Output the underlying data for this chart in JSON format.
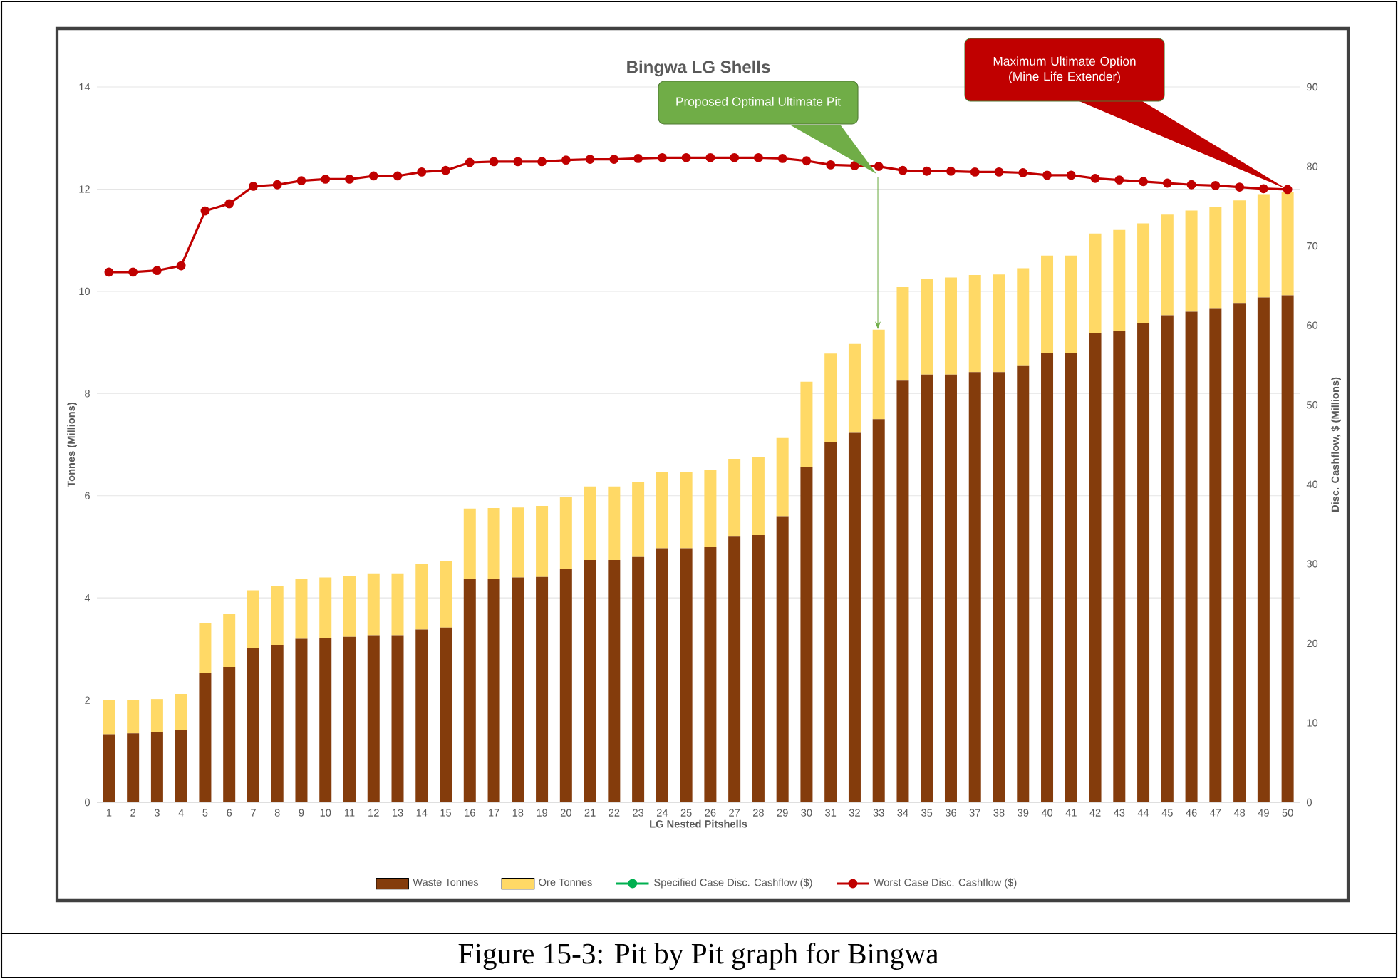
{
  "chart_data": {
    "type": "bar",
    "stacked": true,
    "title": "Bingwa LG Shells",
    "xlabel": "LG Nested Pitshells",
    "ylabel": "Tonnes (Millions)",
    "y2label": "Disc. Cashflow, $ (Millions)",
    "categories": [
      "1",
      "2",
      "3",
      "4",
      "5",
      "6",
      "7",
      "8",
      "9",
      "10",
      "11",
      "12",
      "13",
      "14",
      "15",
      "16",
      "17",
      "18",
      "19",
      "20",
      "21",
      "22",
      "23",
      "24",
      "25",
      "26",
      "27",
      "28",
      "29",
      "30",
      "31",
      "32",
      "33",
      "34",
      "35",
      "36",
      "37",
      "38",
      "39",
      "40",
      "41",
      "42",
      "43",
      "44",
      "45",
      "46",
      "47",
      "48",
      "49",
      "50"
    ],
    "series": [
      {
        "name": "Waste Tonnes",
        "color": "#843c0c",
        "values": [
          1.33,
          1.35,
          1.37,
          1.42,
          2.53,
          2.65,
          3.02,
          3.08,
          3.2,
          3.22,
          3.24,
          3.27,
          3.27,
          3.38,
          3.42,
          4.38,
          4.38,
          4.4,
          4.41,
          4.57,
          4.74,
          4.74,
          4.8,
          4.97,
          4.97,
          5.0,
          5.21,
          5.23,
          5.6,
          6.56,
          7.05,
          7.23,
          7.5,
          8.25,
          8.37,
          8.37,
          8.42,
          8.42,
          8.55,
          8.8,
          8.8,
          9.18,
          9.23,
          9.38,
          9.53,
          9.6,
          9.67,
          9.77,
          9.88,
          9.92
        ]
      },
      {
        "name": "Ore Tonnes",
        "color": "#ffd966",
        "values": [
          0.67,
          0.65,
          0.65,
          0.7,
          0.97,
          1.03,
          1.13,
          1.15,
          1.18,
          1.18,
          1.18,
          1.21,
          1.21,
          1.29,
          1.3,
          1.37,
          1.38,
          1.37,
          1.39,
          1.41,
          1.44,
          1.44,
          1.46,
          1.49,
          1.5,
          1.5,
          1.51,
          1.52,
          1.53,
          1.67,
          1.73,
          1.74,
          1.75,
          1.83,
          1.88,
          1.9,
          1.9,
          1.91,
          1.9,
          1.9,
          1.9,
          1.95,
          1.97,
          1.95,
          1.97,
          1.98,
          1.98,
          2.01,
          2.02,
          2.03
        ]
      },
      {
        "name": "Specified Case Disc. Cashflow ($)",
        "type": "line",
        "axis": "y2",
        "color": "#00b050",
        "values": [
          null,
          null,
          null,
          null,
          null,
          null,
          null,
          null,
          null,
          null,
          null,
          null,
          null,
          null,
          null,
          null,
          null,
          null,
          null,
          null,
          null,
          null,
          null,
          null,
          null,
          null,
          null,
          null,
          null,
          null,
          null,
          null,
          null,
          null,
          null,
          null,
          null,
          null,
          null,
          null,
          null,
          null,
          null,
          null,
          null,
          null,
          null,
          null,
          null,
          null
        ]
      },
      {
        "name": "Worst Case Disc. Cashflow ($)",
        "type": "line",
        "axis": "y2",
        "color": "#c00000",
        "values": [
          66.7,
          66.7,
          66.9,
          67.5,
          74.4,
          75.3,
          77.5,
          77.7,
          78.2,
          78.4,
          78.4,
          78.8,
          78.8,
          79.3,
          79.5,
          80.5,
          80.6,
          80.6,
          80.6,
          80.8,
          80.9,
          80.9,
          81.0,
          81.1,
          81.1,
          81.1,
          81.1,
          81.1,
          81.0,
          80.7,
          80.2,
          80.1,
          80.0,
          79.5,
          79.4,
          79.4,
          79.3,
          79.3,
          79.2,
          78.9,
          78.9,
          78.5,
          78.3,
          78.1,
          77.9,
          77.7,
          77.6,
          77.4,
          77.2,
          77.1
        ]
      }
    ],
    "ylim": [
      0,
      14
    ],
    "yticks": [
      0,
      2,
      4,
      6,
      8,
      10,
      12,
      14
    ],
    "y2lim": [
      0,
      90
    ],
    "y2ticks": [
      0,
      10,
      20,
      30,
      40,
      50,
      60,
      70,
      80,
      90
    ],
    "grid": "y",
    "marker": "circle",
    "legend": "bottom",
    "annotations": [
      "Proposed Optimal Ultimate Pit",
      "Maximum Ultimate Option (Mine Life Extender)",
      "Figure 15-3: Pit by Pit graph for Bingwa"
    ]
  }
}
